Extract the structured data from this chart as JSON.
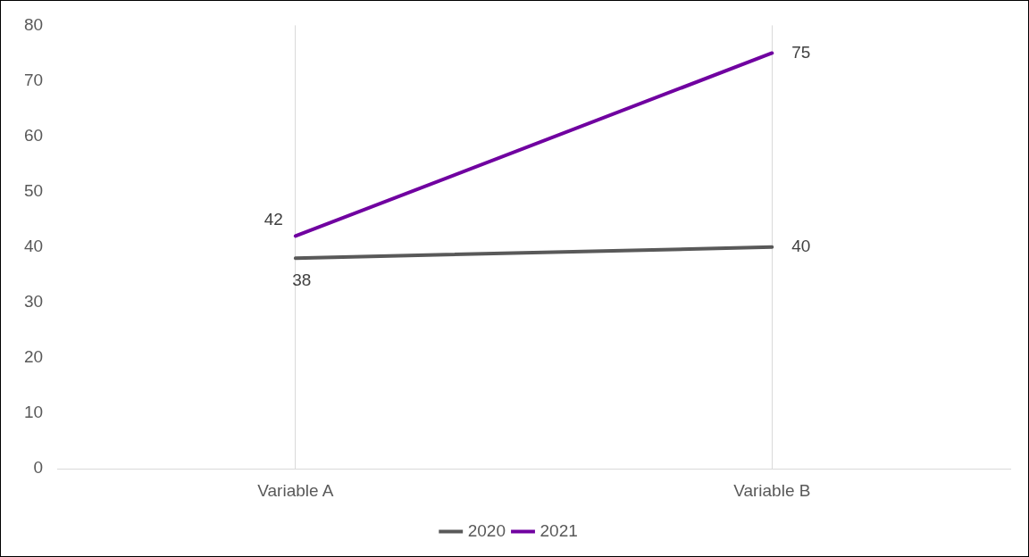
{
  "chart_data": {
    "type": "line",
    "categories": [
      "Variable A",
      "Variable B"
    ],
    "series": [
      {
        "name": "2020",
        "color": "#595959",
        "values": [
          38,
          40
        ]
      },
      {
        "name": "2021",
        "color": "#7000a0",
        "values": [
          42,
          75
        ]
      }
    ],
    "ylim": [
      0,
      80
    ],
    "yticks": [
      0,
      10,
      20,
      30,
      40,
      50,
      60,
      70,
      80
    ],
    "grid": "x",
    "legend": "bottom",
    "data_labels": true,
    "marker": "none",
    "line_style": "solid"
  }
}
